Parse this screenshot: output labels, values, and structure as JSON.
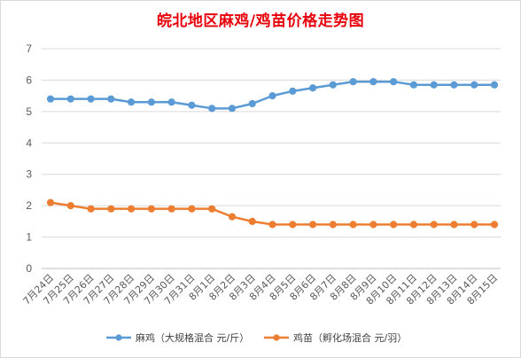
{
  "chart_data": {
    "type": "line",
    "title": "皖北地区麻鸡/鸡苗价格走势图",
    "categories": [
      "7月24日",
      "7月25日",
      "7月26日",
      "7月27日",
      "7月28日",
      "7月29日",
      "7月30日",
      "7月31日",
      "8月1日",
      "8月2日",
      "8月3日",
      "8月4日",
      "8月5日",
      "8月6日",
      "8月7日",
      "8月8日",
      "8月9日",
      "8月10日",
      "8月11日",
      "8月12日",
      "8月13日",
      "8月14日",
      "8月15日"
    ],
    "series": [
      {
        "name": "麻鸡（大规格混合 元/斤）",
        "color": "#5b9bd5",
        "values": [
          5.4,
          5.4,
          5.4,
          5.4,
          5.3,
          5.3,
          5.3,
          5.2,
          5.1,
          5.1,
          5.25,
          5.5,
          5.65,
          5.75,
          5.85,
          5.95,
          5.95,
          5.95,
          5.85,
          5.85,
          5.85,
          5.85,
          5.85
        ]
      },
      {
        "name": "鸡苗（孵化场混合 元/羽）",
        "color": "#ed7d31",
        "values": [
          2.1,
          2.0,
          1.9,
          1.9,
          1.9,
          1.9,
          1.9,
          1.9,
          1.9,
          1.65,
          1.5,
          1.4,
          1.4,
          1.4,
          1.4,
          1.4,
          1.4,
          1.4,
          1.4,
          1.4,
          1.4,
          1.4,
          1.4
        ]
      }
    ],
    "xlabel": "",
    "ylabel": "",
    "ylim": [
      0,
      7
    ],
    "yticks": [
      "0",
      "1",
      "2",
      "3",
      "4",
      "5",
      "6",
      "7"
    ],
    "grid": "horizontal",
    "legend": "bottom"
  }
}
